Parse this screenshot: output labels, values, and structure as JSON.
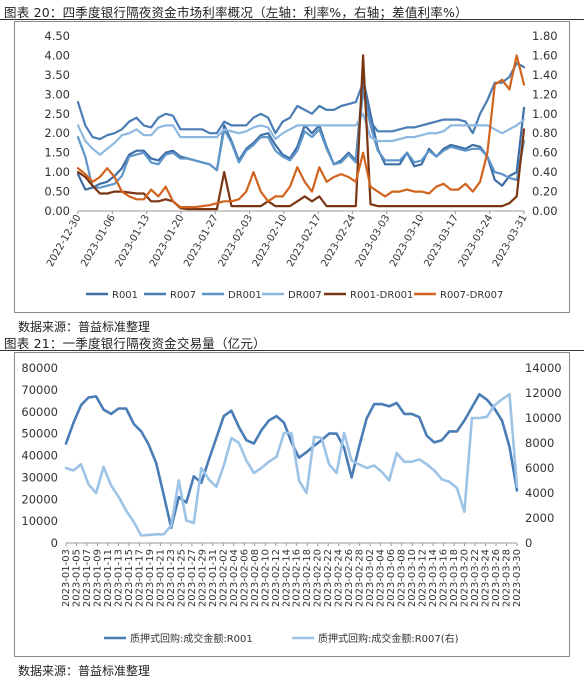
{
  "figure1": {
    "title": "图表 20：四季度银行隔夜资金市场利率概况（左轴：利率%，右轴；差值利率%）",
    "source": "数据来源：普益标准整理",
    "chart_data": {
      "type": "line",
      "x": [
        "2022-12-30",
        "2023-01-03",
        "2023-01-04",
        "2023-01-05",
        "2023-01-06",
        "2023-01-09",
        "2023-01-10",
        "2023-01-11",
        "2023-01-12",
        "2023-01-13",
        "2023-01-16",
        "2023-01-17",
        "2023-01-18",
        "2023-01-19",
        "2023-01-20",
        "2023-01-28",
        "2023-01-29",
        "2023-01-30",
        "2023-01-31",
        "2023-02-01",
        "2023-02-02",
        "2023-02-03",
        "2023-02-06",
        "2023-02-07",
        "2023-02-08",
        "2023-02-09",
        "2023-02-10",
        "2023-02-13",
        "2023-02-14",
        "2023-02-15",
        "2023-02-16",
        "2023-02-17",
        "2023-02-20",
        "2023-02-21",
        "2023-02-22",
        "2023-02-23",
        "2023-02-24",
        "2023-02-27",
        "2023-02-28",
        "2023-03-01",
        "2023-03-02",
        "2023-03-03",
        "2023-03-06",
        "2023-03-07",
        "2023-03-08",
        "2023-03-09",
        "2023-03-10",
        "2023-03-13",
        "2023-03-14",
        "2023-03-15",
        "2023-03-16",
        "2023-03-17",
        "2023-03-20",
        "2023-03-21",
        "2023-03-22",
        "2023-03-23",
        "2023-03-24",
        "2023-03-27",
        "2023-03-28",
        "2023-03-29",
        "2023-03-30",
        "2023-03-31"
      ],
      "x_tick_labels": [
        "2022-12-30",
        "2023-01-06",
        "2023-01-13",
        "2023-01-20",
        "2023-01-27",
        "2023-02-03",
        "2023-02-10",
        "2023-02-17",
        "2023-02-24",
        "2023-03-03",
        "2023-03-10",
        "2023-03-17",
        "2023-03-24",
        "2023-03-31"
      ],
      "y_left": {
        "min": 0,
        "max": 4.5,
        "step": 0.5,
        "ticks": [
          "0.00",
          "0.50",
          "1.00",
          "1.50",
          "2.00",
          "2.50",
          "3.00",
          "3.50",
          "4.00",
          "4.50"
        ]
      },
      "y_right": {
        "min": 0,
        "max": 1.8,
        "step": 0.2,
        "ticks": [
          "0.00",
          "0.20",
          "0.40",
          "0.60",
          "0.80",
          "1.00",
          "1.20",
          "1.40",
          "1.60",
          "1.80"
        ]
      },
      "series": [
        {
          "name": "R001",
          "axis": "left",
          "color": "#3e6ea6",
          "width": 2.2,
          "values": [
            0.95,
            0.55,
            0.6,
            0.7,
            0.75,
            0.9,
            1.1,
            1.45,
            1.55,
            1.55,
            1.35,
            1.3,
            1.5,
            1.55,
            1.4,
            1.35,
            1.3,
            1.25,
            1.2,
            1.05,
            2.2,
            1.8,
            1.3,
            1.6,
            1.75,
            1.95,
            2.0,
            1.7,
            1.45,
            1.35,
            1.65,
            2.2,
            2.0,
            2.2,
            1.65,
            1.2,
            1.3,
            1.5,
            1.3,
            3.4,
            2.5,
            1.6,
            1.2,
            1.2,
            1.2,
            1.5,
            1.15,
            1.2,
            1.6,
            1.4,
            1.6,
            1.7,
            1.65,
            1.6,
            1.7,
            1.65,
            1.4,
            0.8,
            0.65,
            0.9,
            1.0,
            2.65
          ]
        },
        {
          "name": "R007",
          "axis": "left",
          "color": "#4a7db5",
          "width": 2.2,
          "values": [
            2.8,
            2.2,
            1.9,
            1.85,
            1.95,
            2.0,
            2.1,
            2.3,
            2.4,
            2.2,
            2.15,
            2.4,
            2.5,
            2.45,
            2.1,
            2.1,
            2.1,
            2.1,
            2.0,
            2.0,
            2.3,
            2.2,
            2.2,
            2.2,
            2.4,
            2.5,
            2.4,
            2.0,
            2.3,
            2.4,
            2.7,
            2.6,
            2.5,
            2.7,
            2.6,
            2.6,
            2.7,
            2.75,
            2.8,
            3.3,
            2.3,
            2.05,
            2.05,
            2.05,
            2.1,
            2.15,
            2.15,
            2.2,
            2.25,
            2.3,
            2.35,
            2.35,
            2.35,
            2.3,
            2.0,
            2.5,
            2.85,
            3.3,
            3.3,
            3.45,
            3.8,
            3.7
          ]
        },
        {
          "name": "DR001",
          "axis": "left",
          "color": "#5f95c9",
          "width": 2.2,
          "values": [
            1.9,
            1.4,
            0.6,
            0.6,
            0.65,
            0.7,
            0.9,
            1.4,
            1.45,
            1.5,
            1.25,
            1.2,
            1.45,
            1.5,
            1.35,
            1.35,
            1.3,
            1.25,
            1.2,
            1.05,
            2.1,
            1.75,
            1.25,
            1.55,
            1.7,
            1.9,
            1.9,
            1.55,
            1.4,
            1.3,
            1.55,
            2.05,
            1.9,
            2.1,
            1.6,
            1.2,
            1.25,
            1.45,
            1.25,
            3.1,
            2.2,
            1.55,
            1.3,
            1.3,
            1.3,
            1.5,
            1.25,
            1.3,
            1.55,
            1.4,
            1.55,
            1.65,
            1.6,
            1.55,
            1.6,
            1.6,
            1.4,
            1.0,
            0.95,
            0.85,
            0.8,
            1.8
          ]
        },
        {
          "name": "DR007",
          "axis": "left",
          "color": "#8fb8e0",
          "width": 2.2,
          "values": [
            2.2,
            1.8,
            1.6,
            1.45,
            1.6,
            1.75,
            1.95,
            2.0,
            2.1,
            1.95,
            1.95,
            2.15,
            2.2,
            2.2,
            1.9,
            1.9,
            1.9,
            1.9,
            1.9,
            1.9,
            2.1,
            2.05,
            2.0,
            2.05,
            2.15,
            2.2,
            2.15,
            1.85,
            2.0,
            2.1,
            2.2,
            2.2,
            2.2,
            2.2,
            2.2,
            2.2,
            2.2,
            2.2,
            2.2,
            2.5,
            1.9,
            1.8,
            1.8,
            1.8,
            1.85,
            1.9,
            1.9,
            1.95,
            2.0,
            2.0,
            2.05,
            2.2,
            2.2,
            2.2,
            2.2,
            2.2,
            2.2,
            2.1,
            2.0,
            2.1,
            2.2,
            2.35
          ]
        },
        {
          "name": "R001-DR001",
          "axis": "right",
          "color": "#7a3512",
          "width": 2.2,
          "values": [
            0.4,
            0.35,
            0.26,
            0.18,
            0.18,
            0.2,
            0.2,
            0.19,
            0.18,
            0.18,
            0.1,
            0.1,
            0.12,
            0.1,
            0.03,
            0.02,
            0.02,
            0.02,
            0.02,
            0.02,
            0.4,
            0.05,
            0.05,
            0.05,
            0.05,
            0.05,
            0.1,
            0.05,
            0.05,
            0.05,
            0.1,
            0.15,
            0.1,
            0.15,
            0.05,
            0.05,
            0.05,
            0.05,
            0.05,
            1.6,
            0.07,
            0.05,
            0.05,
            0.05,
            0.05,
            0.05,
            0.05,
            0.05,
            0.05,
            0.05,
            0.05,
            0.05,
            0.05,
            0.05,
            0.05,
            0.05,
            0.05,
            0.05,
            0.05,
            0.08,
            0.15,
            0.84
          ]
        },
        {
          "name": "R007-DR007",
          "axis": "right",
          "color": "#d2631f",
          "width": 2.2,
          "values": [
            0.44,
            0.38,
            0.3,
            0.35,
            0.44,
            0.35,
            0.2,
            0.15,
            0.12,
            0.12,
            0.22,
            0.15,
            0.25,
            0.1,
            0.04,
            0.04,
            0.04,
            0.05,
            0.06,
            0.08,
            0.1,
            0.1,
            0.12,
            0.2,
            0.4,
            0.2,
            0.1,
            0.15,
            0.15,
            0.25,
            0.45,
            0.3,
            0.2,
            0.45,
            0.3,
            0.35,
            0.38,
            0.35,
            0.3,
            0.6,
            0.25,
            0.2,
            0.15,
            0.2,
            0.2,
            0.22,
            0.2,
            0.2,
            0.18,
            0.25,
            0.28,
            0.22,
            0.22,
            0.28,
            0.2,
            0.3,
            0.6,
            1.3,
            1.35,
            1.25,
            1.6,
            1.3
          ]
        }
      ],
      "legend_position": "bottom",
      "grid": false
    }
  },
  "figure2": {
    "title": "图表 21：一季度银行隔夜资金交易量（亿元）",
    "source": "数据来源：普益标准整理",
    "chart_data": {
      "type": "line",
      "x": [
        "2023-01-03",
        "2023-01-04",
        "2023-01-05",
        "2023-01-06",
        "2023-01-09",
        "2023-01-10",
        "2023-01-11",
        "2023-01-12",
        "2023-01-13",
        "2023-01-16",
        "2023-01-17",
        "2023-01-18",
        "2023-01-19",
        "2023-01-20",
        "2023-01-28",
        "2023-01-29",
        "2023-01-30",
        "2023-01-31",
        "2023-02-01",
        "2023-02-02",
        "2023-02-03",
        "2023-02-06",
        "2023-02-07",
        "2023-02-08",
        "2023-02-09",
        "2023-02-10",
        "2023-02-13",
        "2023-02-14",
        "2023-02-15",
        "2023-02-16",
        "2023-02-17",
        "2023-02-20",
        "2023-02-21",
        "2023-02-22",
        "2023-02-23",
        "2023-02-24",
        "2023-02-27",
        "2023-02-28",
        "2023-03-01",
        "2023-03-02",
        "2023-03-03",
        "2023-03-06",
        "2023-03-07",
        "2023-03-08",
        "2023-03-09",
        "2023-03-10",
        "2023-03-13",
        "2023-03-14",
        "2023-03-15",
        "2023-03-16",
        "2023-03-17",
        "2023-03-20",
        "2023-03-21",
        "2023-03-22",
        "2023-03-23",
        "2023-03-24",
        "2023-03-27",
        "2023-03-28",
        "2023-03-29",
        "2023-03-30",
        "2023-03-31"
      ],
      "x_tick_labels": [
        "2023-01-03",
        "2023-01-05",
        "2023-01-07",
        "2023-01-09",
        "2023-01-11",
        "2023-01-13",
        "2023-01-15",
        "2023-01-17",
        "2023-01-19",
        "2023-01-21",
        "2023-01-23",
        "2023-01-25",
        "2023-01-27",
        "2023-01-29",
        "2023-01-31",
        "2023-02-02",
        "2023-02-04",
        "2023-02-06",
        "2023-02-08",
        "2023-02-10",
        "2023-02-12",
        "2023-02-14",
        "2023-02-16",
        "2023-02-18",
        "2023-02-20",
        "2023-02-22",
        "2023-02-24",
        "2023-02-26",
        "2023-02-28",
        "2023-03-02",
        "2023-03-04",
        "2023-03-06",
        "2023-03-08",
        "2023-03-10",
        "2023-03-12",
        "2023-03-14",
        "2023-03-16",
        "2023-03-18",
        "2023-03-20",
        "2023-03-22",
        "2023-03-24",
        "2023-03-26",
        "2023-03-28",
        "2023-03-30"
      ],
      "y_left": {
        "min": 0,
        "max": 80000,
        "step": 10000,
        "ticks": [
          "0",
          "10000",
          "20000",
          "30000",
          "40000",
          "50000",
          "60000",
          "70000",
          "80000"
        ]
      },
      "y_right": {
        "min": 0,
        "max": 14000,
        "step": 2000,
        "ticks": [
          "0",
          "2000",
          "4000",
          "6000",
          "8000",
          "10000",
          "12000",
          "14000"
        ]
      },
      "series": [
        {
          "name": "质押式回购:成交金额:R001",
          "axis": "left",
          "color": "#4a7db5",
          "width": 2.6,
          "values": [
            45500,
            55000,
            63000,
            66500,
            67000,
            61000,
            59000,
            61500,
            61500,
            54500,
            51000,
            45000,
            36500,
            22000,
            7000,
            21000,
            18500,
            30500,
            27500,
            38000,
            48000,
            58000,
            60500,
            53000,
            47000,
            45500,
            51500,
            56000,
            58000,
            55000,
            46000,
            39000,
            41500,
            44500,
            47000,
            50000,
            50000,
            43500,
            30000,
            44000,
            57000,
            63500,
            63500,
            62500,
            64000,
            59000,
            59000,
            57500,
            49000,
            46000,
            47000,
            51000,
            51000,
            56000,
            62000,
            68000,
            65500,
            61500,
            56000,
            44000,
            24000
          ]
        },
        {
          "name": "质押式回购:成交金额:R007(右)",
          "axis": "right",
          "color": "#9dc3e6",
          "width": 2.6,
          "values": [
            6000,
            5800,
            6300,
            4700,
            4000,
            6100,
            4600,
            3700,
            2600,
            1700,
            600,
            650,
            700,
            700,
            1400,
            5000,
            1800,
            1600,
            6000,
            5100,
            4500,
            6200,
            8400,
            8000,
            6600,
            5600,
            6000,
            6500,
            6900,
            8800,
            8800,
            5000,
            4000,
            8500,
            8400,
            6300,
            5600,
            8800,
            6600,
            6300,
            6000,
            6200,
            5700,
            5000,
            7200,
            6500,
            6500,
            6700,
            6300,
            5800,
            5100,
            4900,
            4400,
            2500,
            10000,
            10000,
            10100,
            11000,
            11500,
            11900,
            4500
          ]
        }
      ],
      "legend_position": "bottom",
      "grid": false
    }
  }
}
